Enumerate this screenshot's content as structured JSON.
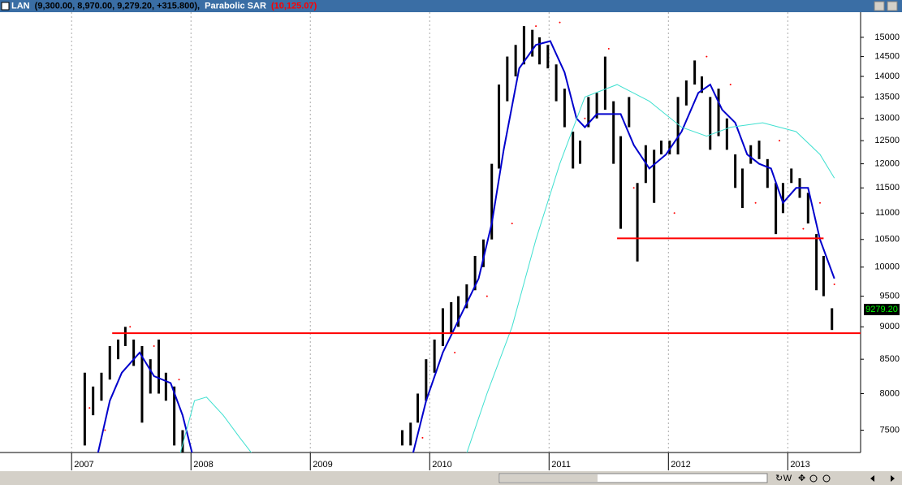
{
  "chart_data": {
    "type": "stock",
    "symbol": "LAN",
    "symbol_values": "(9,300.00, 8,970.00, 9,279.20, +315.800),",
    "indicator": "Parabolic SAR",
    "indicator_value": "(10,125.07)",
    "log_y": true,
    "grid": true,
    "xlim": [
      2006.4,
      2013.61
    ],
    "ylim": [
      7210,
      15680
    ],
    "xticks": [
      2007,
      2008,
      2009,
      2010,
      2011,
      2012,
      2013
    ],
    "yticks": [
      7500,
      8000,
      8500,
      9000,
      9500,
      10000,
      10500,
      11000,
      11500,
      12000,
      12500,
      13000,
      13500,
      14000,
      14500,
      15000
    ],
    "last_price": {
      "value": 9279.2,
      "label": "9279.20"
    },
    "toolbar_label": "W",
    "price": {
      "color": "#000000",
      "x": [
        2007.11,
        2007.18,
        2007.25,
        2007.32,
        2007.39,
        2007.45,
        2007.52,
        2007.59,
        2007.66,
        2007.73,
        2007.79,
        2007.86,
        2007.93,
        2008.8,
        2009.77,
        2009.84,
        2009.9,
        2009.97,
        2010.04,
        2010.11,
        2010.18,
        2010.24,
        2010.31,
        2010.38,
        2010.45,
        2010.52,
        2010.58,
        2010.65,
        2010.72,
        2010.79,
        2010.86,
        2010.92,
        2010.99,
        2011.06,
        2011.13,
        2011.2,
        2011.26,
        2011.33,
        2011.4,
        2011.47,
        2011.54,
        2011.6,
        2011.67,
        2011.74,
        2011.81,
        2011.88,
        2011.94,
        2012.01,
        2012.08,
        2012.15,
        2012.22,
        2012.28,
        2012.35,
        2012.42,
        2012.49,
        2012.56,
        2012.62,
        2012.69,
        2012.76,
        2012.83,
        2012.9,
        2012.96,
        2013.03,
        2013.1,
        2013.17,
        2013.24,
        2013.3,
        2013.37
      ],
      "low": [
        7300,
        7700,
        7900,
        8200,
        8500,
        8700,
        8400,
        7600,
        8000,
        8000,
        7900,
        7300,
        7100,
        null,
        7300,
        7300,
        7600,
        7900,
        8300,
        8700,
        8900,
        9000,
        9300,
        9600,
        10000,
        10500,
        11900,
        13400,
        14000,
        14300,
        14500,
        14300,
        14200,
        13400,
        12800,
        11900,
        12000,
        12800,
        13000,
        13200,
        12000,
        10700,
        12800,
        10100,
        11600,
        11200,
        12200,
        12200,
        12200,
        13300,
        13800,
        13600,
        12300,
        12600,
        12300,
        11500,
        11100,
        12000,
        12100,
        11500,
        10600,
        11000,
        11600,
        11300,
        10800,
        9600,
        9500,
        8950
      ],
      "high": [
        8300,
        8100,
        8300,
        8700,
        8800,
        9000,
        8800,
        8700,
        8500,
        8800,
        8300,
        8100,
        7500,
        null,
        7500,
        7600,
        8000,
        8500,
        8800,
        9300,
        9400,
        9500,
        9700,
        10200,
        10500,
        12000,
        13800,
        14500,
        14800,
        15300,
        15200,
        15000,
        14800,
        14300,
        13700,
        12700,
        12500,
        13500,
        13600,
        14500,
        13400,
        12600,
        13500,
        11600,
        12400,
        12300,
        12500,
        12500,
        13500,
        13900,
        14400,
        14000,
        13500,
        13700,
        13000,
        12200,
        11900,
        12400,
        12500,
        12100,
        11600,
        11600,
        11900,
        11700,
        11400,
        10600,
        10200,
        9300
      ]
    },
    "lines": [
      {
        "color": "#0000cc",
        "width": 2,
        "x": [
          2007.22,
          2007.32,
          2007.42,
          2007.57,
          2007.69,
          2007.83,
          2007.93,
          2008.01,
          2008.8,
          2009.86,
          2009.97,
          2010.11,
          2010.24,
          2010.41,
          2010.52,
          2010.62,
          2010.75,
          2010.89,
          2011.01,
          2011.13,
          2011.23,
          2011.3,
          2011.4,
          2011.5,
          2011.6,
          2011.71,
          2011.84,
          2011.98,
          2012.11,
          2012.25,
          2012.35,
          2012.45,
          2012.56,
          2012.66,
          2012.76,
          2012.86,
          2012.96,
          2013.07,
          2013.17,
          2013.27,
          2013.39
        ],
        "values": [
          7200,
          7900,
          8300,
          8600,
          8250,
          8150,
          7700,
          7200,
          null,
          7200,
          7900,
          8600,
          9100,
          9800,
          10800,
          12300,
          14200,
          14800,
          14900,
          14100,
          13000,
          12800,
          13100,
          13100,
          13100,
          12400,
          11900,
          12200,
          12700,
          13600,
          13800,
          13200,
          12900,
          12200,
          12000,
          11900,
          11200,
          11500,
          11500,
          10500,
          9800
        ]
      },
      {
        "color": "#40e0d0",
        "width": 1,
        "x": [
          2007.91,
          2008.03,
          2008.13,
          2008.27,
          2008.41,
          2008.51,
          2009.3,
          2010.31,
          2010.48,
          2010.69,
          2010.89,
          2011.09,
          2011.3,
          2011.57,
          2011.84,
          2012.11,
          2012.32,
          2012.52,
          2012.79,
          2013.07,
          2013.27,
          2013.39
        ],
        "values": [
          7200,
          7900,
          7950,
          7700,
          7400,
          7200,
          null,
          7200,
          8000,
          9000,
          10500,
          12000,
          13500,
          13800,
          13400,
          12800,
          12600,
          12800,
          12900,
          12700,
          12200,
          11700
        ]
      }
    ],
    "sar": {
      "color": "#ff0000",
      "x": [
        2007.15,
        2007.28,
        2007.49,
        2007.69,
        2007.9,
        2009.94,
        2010.21,
        2010.48,
        2010.69,
        2010.89,
        2011.09,
        2011.3,
        2011.5,
        2011.71,
        2012.05,
        2012.32,
        2012.52,
        2012.73,
        2012.93,
        2013.13,
        2013.27,
        2013.39
      ],
      "values": [
        7800,
        7500,
        9000,
        8700,
        8200,
        7400,
        8600,
        9500,
        10800,
        15300,
        15400,
        13000,
        14700,
        11500,
        11000,
        14500,
        13800,
        11200,
        12500,
        10700,
        11200,
        9700
      ]
    },
    "levels": [
      {
        "value": 8900,
        "x": [
          2007.34,
          2013.61
        ],
        "color": "#ff0000"
      },
      {
        "value": 10520,
        "x": [
          2011.57,
          2013.3
        ],
        "color": "#ff0000"
      }
    ]
  }
}
